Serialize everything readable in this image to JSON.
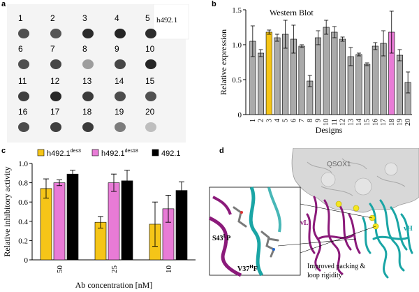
{
  "panels": {
    "a": {
      "letter": "a",
      "label": "h492.1",
      "spots": [
        {
          "n": "1",
          "intensity": 0.8
        },
        {
          "n": "2",
          "intensity": 0.78
        },
        {
          "n": "3",
          "intensity": 0.97
        },
        {
          "n": "4",
          "intensity": 1.0
        },
        {
          "n": "5",
          "intensity": 0.96
        },
        {
          "n": "6",
          "intensity": 0.8
        },
        {
          "n": "7",
          "intensity": 0.85
        },
        {
          "n": "8",
          "intensity": 0.45
        },
        {
          "n": "9",
          "intensity": 0.85
        },
        {
          "n": "10",
          "intensity": 1.0
        },
        {
          "n": "11",
          "intensity": 0.88
        },
        {
          "n": "12",
          "intensity": 0.98
        },
        {
          "n": "13",
          "intensity": 0.9
        },
        {
          "n": "14",
          "intensity": 0.82
        },
        {
          "n": "15",
          "intensity": 0.8
        },
        {
          "n": "16",
          "intensity": 0.82
        },
        {
          "n": "17",
          "intensity": 0.88
        },
        {
          "n": "18",
          "intensity": 0.9
        },
        {
          "n": "19",
          "intensity": 0.6
        },
        {
          "n": "20",
          "intensity": 0.3
        }
      ]
    },
    "b": {
      "letter": "b",
      "chart_data": {
        "type": "bar",
        "title": "Western Blot",
        "xlabel": "Designs",
        "ylabel": "Relative expression",
        "ylim": [
          0,
          1.5
        ],
        "yticks": [
          "0",
          "0.5",
          "1.0",
          "1.5"
        ],
        "yticks_values": [
          0,
          0.5,
          1.0,
          1.5
        ],
        "categories": [
          "1",
          "2",
          "3",
          "4",
          "5",
          "6",
          "7",
          "8",
          "9",
          "10",
          "11",
          "12",
          "13",
          "14",
          "15",
          "16",
          "17",
          "18",
          "19",
          "20"
        ],
        "values": [
          1.05,
          0.88,
          1.18,
          1.1,
          1.15,
          1.08,
          0.98,
          0.48,
          1.1,
          1.25,
          1.18,
          1.08,
          0.83,
          0.86,
          0.72,
          0.98,
          1.02,
          1.18,
          0.85,
          0.46
        ],
        "errors": [
          0.22,
          0.05,
          0.03,
          0.05,
          0.2,
          0.2,
          0.02,
          0.08,
          0.1,
          0.1,
          0.08,
          0.03,
          0.13,
          0.02,
          0.02,
          0.05,
          0.18,
          0.3,
          0.08,
          0.15
        ],
        "colors": [
          "#aaaaaa",
          "#aaaaaa",
          "#f5c518",
          "#aaaaaa",
          "#aaaaaa",
          "#aaaaaa",
          "#aaaaaa",
          "#aaaaaa",
          "#aaaaaa",
          "#aaaaaa",
          "#aaaaaa",
          "#aaaaaa",
          "#aaaaaa",
          "#aaaaaa",
          "#aaaaaa",
          "#aaaaaa",
          "#aaaaaa",
          "#e87bd6",
          "#aaaaaa",
          "#aaaaaa"
        ]
      }
    },
    "c": {
      "letter": "c",
      "chart_data": {
        "type": "bar",
        "xlabel": "Ab concentration [nM]",
        "ylabel": "Relative inhibitory activity",
        "ylim": [
          0,
          1.0
        ],
        "yticks": [
          "0",
          "0.2",
          "0.4",
          "0.6",
          "0.8",
          "1.0"
        ],
        "yticks_values": [
          0,
          0.2,
          0.4,
          0.6,
          0.8,
          1.0
        ],
        "categories": [
          "50",
          "25",
          "10"
        ],
        "legend_position": "top",
        "series": [
          {
            "name": "h492.1",
            "sup": "des3",
            "color": "#f5c518",
            "values": [
              0.74,
              0.39,
              0.37
            ],
            "errors": [
              0.1,
              0.06,
              0.23
            ]
          },
          {
            "name": "h492.1",
            "sup": "des18",
            "color": "#e87bd6",
            "values": [
              0.8,
              0.8,
              0.53
            ],
            "errors": [
              0.03,
              0.09,
              0.14
            ]
          },
          {
            "name": "492.1",
            "sup": "",
            "color": "#000000",
            "values": [
              0.89,
              0.82,
              0.72
            ],
            "errors": [
              0.04,
              0.11,
              0.09
            ]
          }
        ]
      }
    },
    "d": {
      "letter": "d",
      "labels": {
        "qsox": "QSOX1",
        "vl": "vL",
        "vh": "vH",
        "s43": "S43",
        "s43_sup": "L",
        "s43_suffix": "P",
        "v37": "V37",
        "v37_sup": "H",
        "v37_suffix": "F",
        "caption_line1": "Improved packing &",
        "caption_line2": "loop rigidity"
      },
      "colors": {
        "light_chain": "#8b1a7a",
        "heavy_chain": "#1aa5a5",
        "surface": "#d8d8d8",
        "sulfur": "#f5e620"
      }
    }
  }
}
